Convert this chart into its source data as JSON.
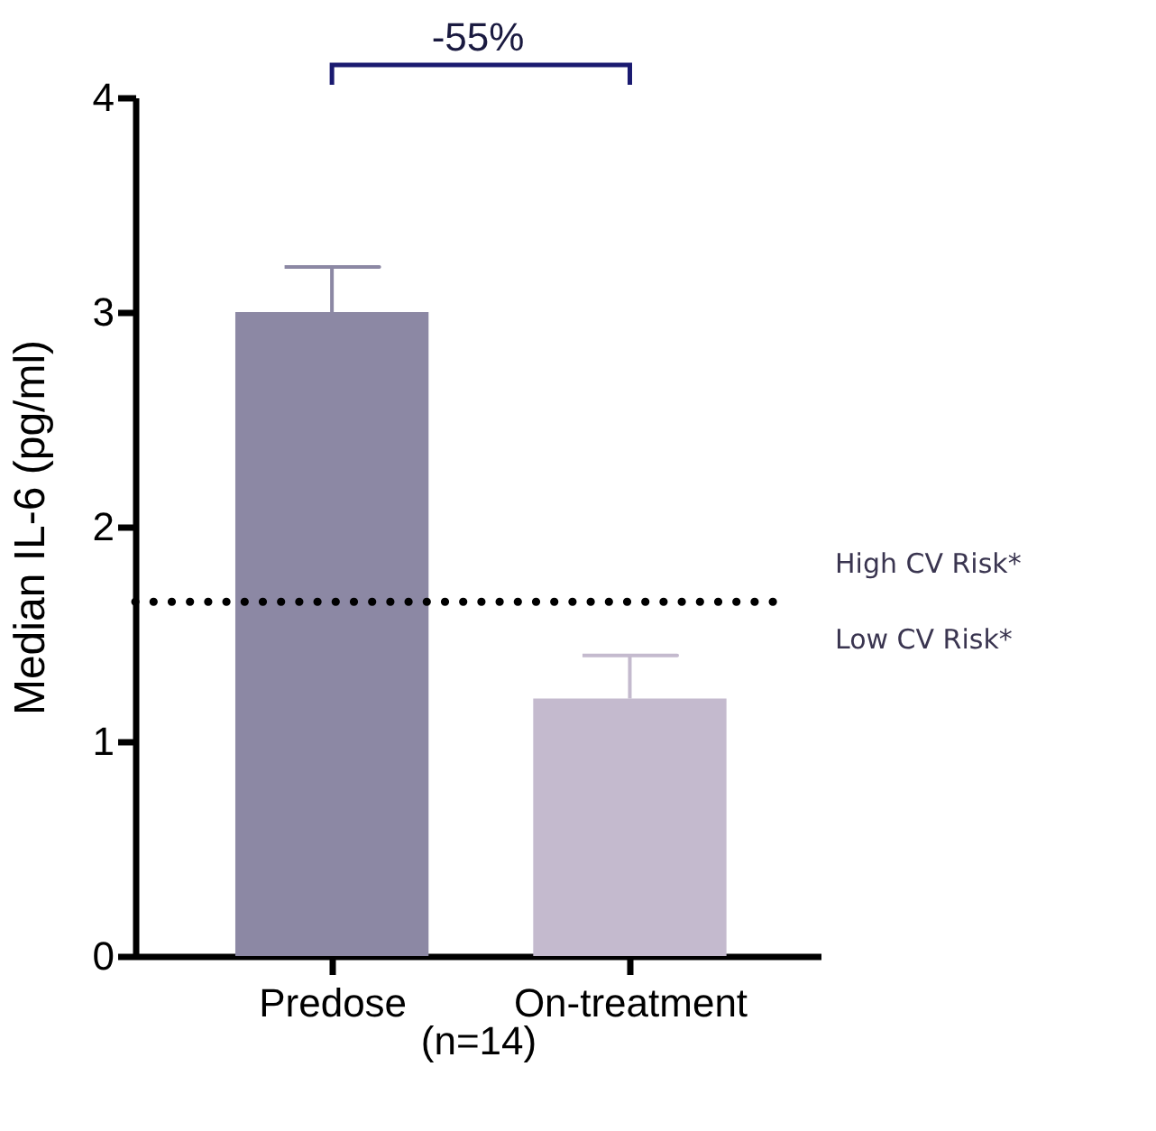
{
  "chart_data": {
    "type": "bar",
    "categories": [
      "Predose",
      "On-treatment"
    ],
    "values": [
      3.0,
      1.2
    ],
    "colors": [
      "#8c88a4",
      "#c4bace"
    ],
    "errors": [
      [
        3.0,
        3.21
      ],
      [
        1.2,
        1.4
      ]
    ],
    "ylabel": "Median IL-6  (pg/ml)",
    "xlabel": "(n=14)",
    "ylim": [
      0,
      4
    ],
    "yticks": [
      0,
      1,
      2,
      3,
      4
    ],
    "ref_lines": [
      {
        "axis": "y",
        "value": 1.65,
        "label": "High CV Risk*",
        "color": "#000000",
        "line_style": "dotted"
      }
    ],
    "annotations": [
      "-55%",
      "Low CV Risk*"
    ]
  }
}
